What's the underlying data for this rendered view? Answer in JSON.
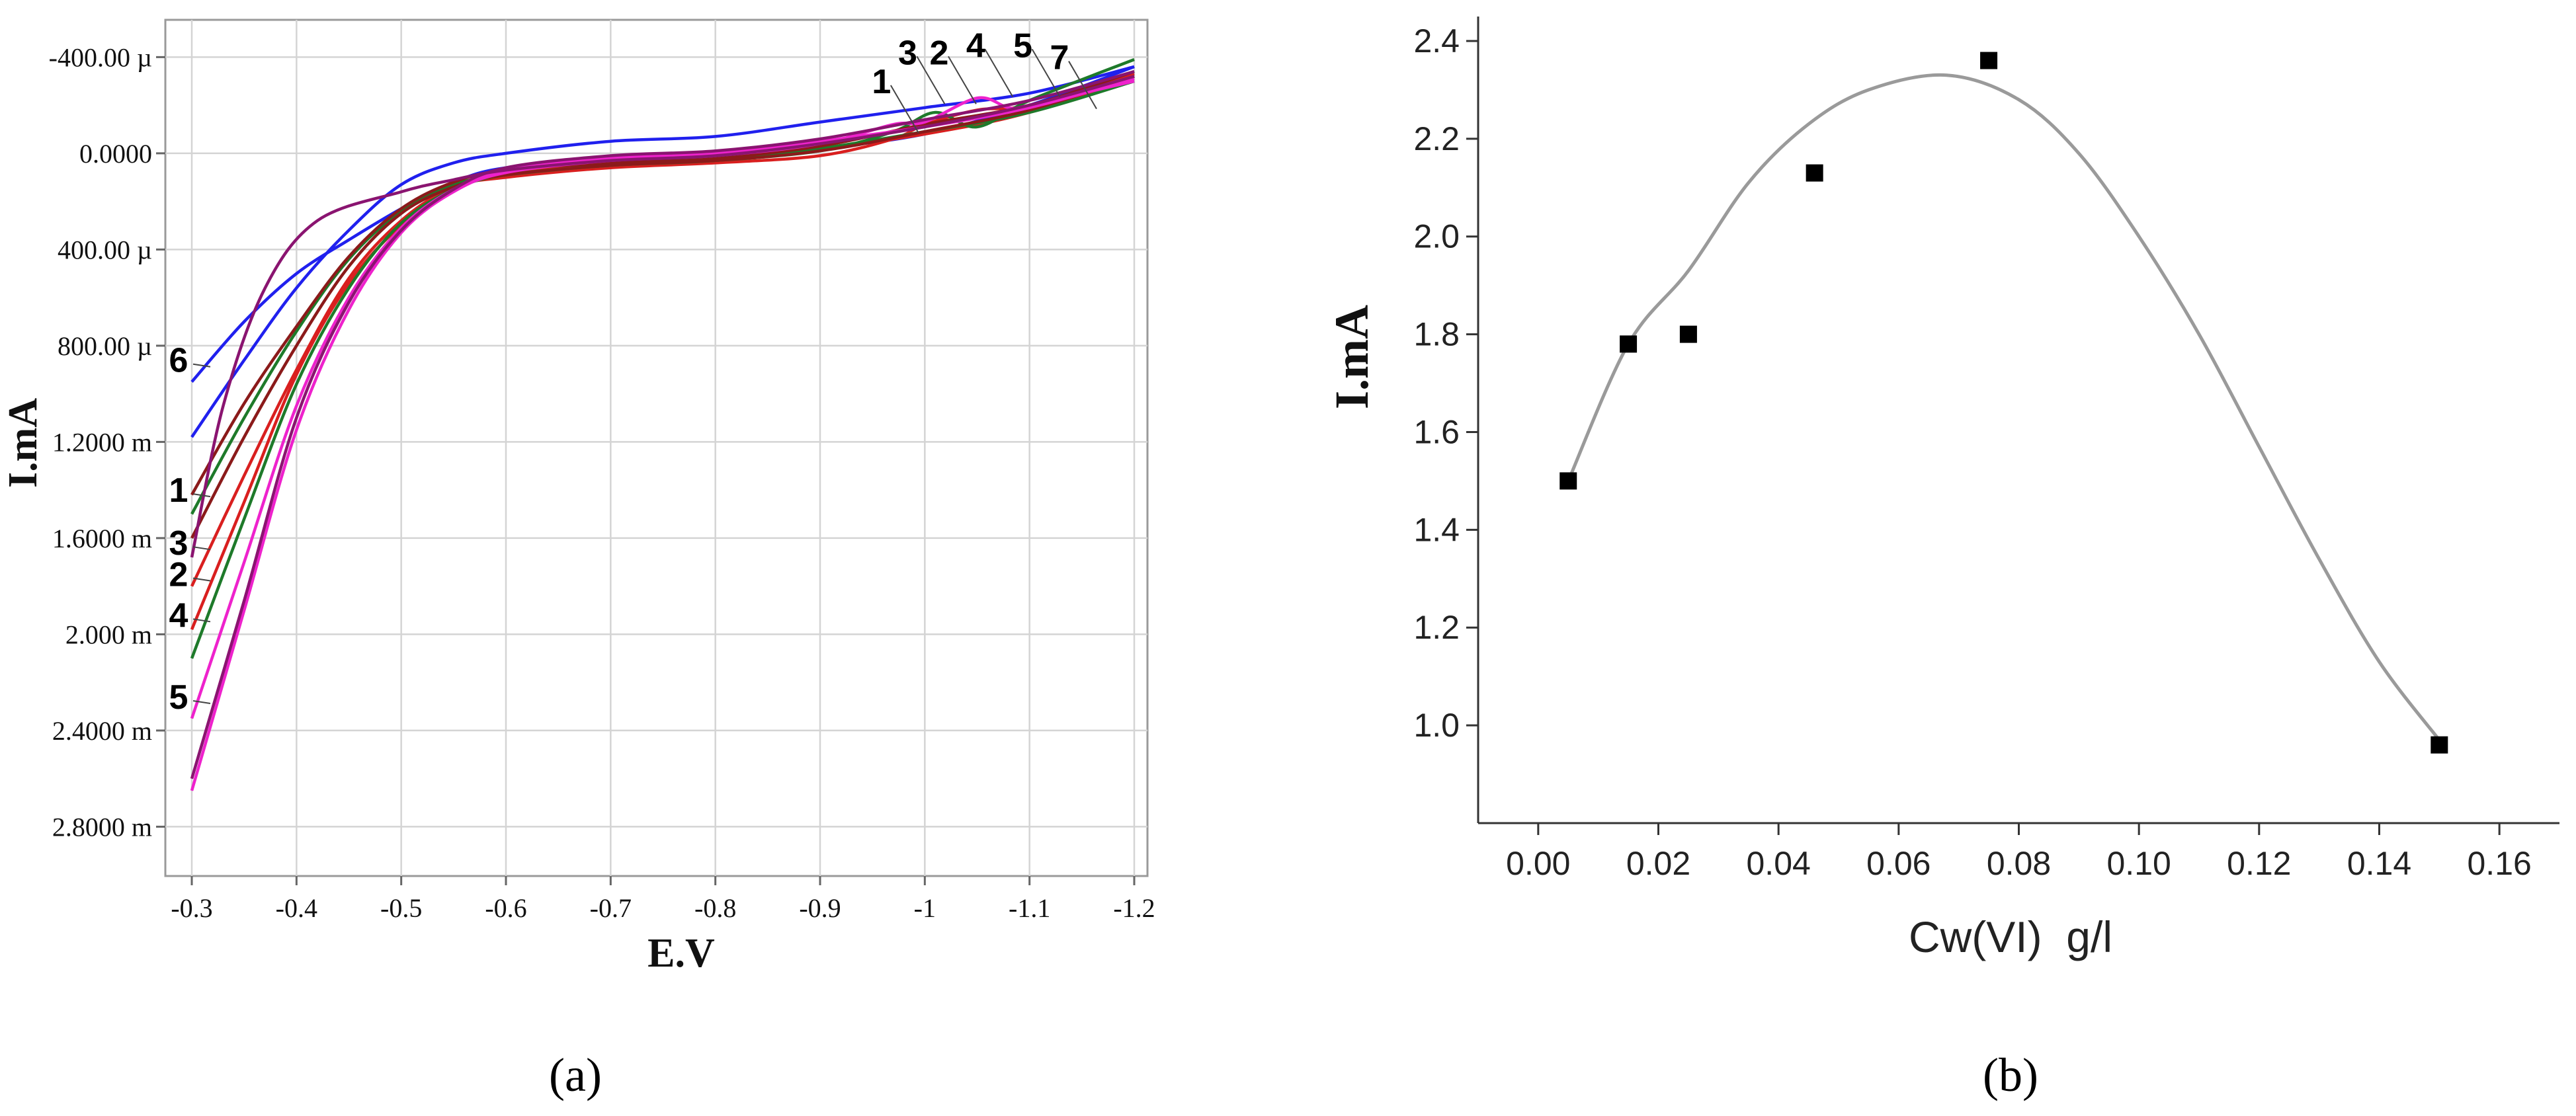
{
  "chart_data": [
    {
      "panel_label": "(a)",
      "type": "line",
      "xlabel": "E.V",
      "ylabel": "I.mA",
      "xlim": [
        -0.3,
        -1.2
      ],
      "ylim": [
        -500,
        2950
      ],
      "y_unit": "µA",
      "x_ticks": [
        {
          "v": -0.3,
          "label": "-0.3"
        },
        {
          "v": -0.4,
          "label": "-0.4"
        },
        {
          "v": -0.5,
          "label": "-0.5"
        },
        {
          "v": -0.6,
          "label": "-0.6"
        },
        {
          "v": -0.7,
          "label": "-0.7"
        },
        {
          "v": -0.8,
          "label": "-0.8"
        },
        {
          "v": -0.9,
          "label": "-0.9"
        },
        {
          "v": -1.0,
          "label": "-1"
        },
        {
          "v": -1.1,
          "label": "-1.1"
        },
        {
          "v": -1.2,
          "label": "-1.2"
        }
      ],
      "y_ticks": [
        {
          "v": -400,
          "label": "-400.00 µ"
        },
        {
          "v": 0,
          "label": "0.0000"
        },
        {
          "v": 400,
          "label": "400.00 µ"
        },
        {
          "v": 800,
          "label": "800.00 µ"
        },
        {
          "v": 1200,
          "label": "1.2000 m"
        },
        {
          "v": 1600,
          "label": "1.6000 m"
        },
        {
          "v": 2000,
          "label": "2.000 m"
        },
        {
          "v": 2400,
          "label": "2.4000 m"
        },
        {
          "v": 2800,
          "label": "2.8000 m"
        }
      ],
      "grid": true,
      "series": [
        {
          "color": "#2020ee",
          "curves": [
            {
              "x": [
                -0.3,
                -0.35,
                -0.4,
                -0.45,
                -0.5,
                -0.55,
                -0.6,
                -0.7,
                -0.8,
                -0.9,
                -1.0,
                -1.1,
                -1.2
              ],
              "y": [
                950,
                700,
                500,
                360,
                230,
                120,
                60,
                30,
                20,
                -20,
                -80,
                -200,
                -360
              ]
            },
            {
              "x": [
                -0.3,
                -0.35,
                -0.4,
                -0.45,
                -0.5,
                -0.55,
                -0.6,
                -0.7,
                -0.8,
                -0.9,
                -1.0,
                -1.1,
                -1.2
              ],
              "y": [
                1180,
                860,
                560,
                320,
                130,
                40,
                0,
                -50,
                -70,
                -130,
                -190,
                -250,
                -360
              ]
            }
          ]
        },
        {
          "color": "#d91f1f",
          "curves": [
            {
              "x": [
                -0.3,
                -0.35,
                -0.4,
                -0.45,
                -0.5,
                -0.55,
                -0.6,
                -0.7,
                -0.8,
                -0.9,
                -0.97,
                -1.0,
                -1.05,
                -1.1,
                -1.2
              ],
              "y": [
                1800,
                1340,
                900,
                520,
                280,
                140,
                100,
                60,
                40,
                10,
                -60,
                -120,
                -180,
                -200,
                -330
              ]
            },
            {
              "x": [
                -0.3,
                -0.35,
                -0.4,
                -0.45,
                -0.5,
                -0.55,
                -0.6,
                -0.7,
                -0.8,
                -0.9,
                -1.0,
                -1.1,
                -1.2
              ],
              "y": [
                1980,
                1450,
                920,
                540,
                300,
                150,
                80,
                40,
                20,
                -20,
                -80,
                -170,
                -320
              ]
            }
          ]
        },
        {
          "color": "#1e7a2a",
          "curves": [
            {
              "x": [
                -0.3,
                -0.35,
                -0.4,
                -0.45,
                -0.5,
                -0.55,
                -0.6,
                -0.7,
                -0.8,
                -0.9,
                -0.97,
                -1.01,
                -1.05,
                -1.1,
                -1.2
              ],
              "y": [
                2100,
                1520,
                960,
                560,
                290,
                150,
                90,
                50,
                30,
                -10,
                -90,
                -170,
                -110,
                -220,
                -390
              ]
            },
            {
              "x": [
                -0.3,
                -0.35,
                -0.4,
                -0.45,
                -0.5,
                -0.55,
                -0.6,
                -0.7,
                -0.8,
                -0.9,
                -1.0,
                -1.1,
                -1.2
              ],
              "y": [
                1500,
                1100,
                740,
                440,
                240,
                130,
                90,
                50,
                30,
                -20,
                -90,
                -170,
                -300
              ]
            }
          ]
        },
        {
          "color": "#8b1a1a",
          "curves": [
            {
              "x": [
                -0.3,
                -0.35,
                -0.4,
                -0.45,
                -0.5,
                -0.55,
                -0.6,
                -0.7,
                -0.8,
                -0.9,
                -1.0,
                -1.1,
                -1.2
              ],
              "y": [
                1600,
                1180,
                800,
                470,
                250,
                140,
                90,
                50,
                30,
                -10,
                -90,
                -180,
                -320
              ]
            },
            {
              "x": [
                -0.3,
                -0.35,
                -0.4,
                -0.45,
                -0.5,
                -0.55,
                -0.6,
                -0.7,
                -0.8,
                -0.9,
                -1.0,
                -1.1,
                -1.2
              ],
              "y": [
                1420,
                1040,
                720,
                430,
                230,
                120,
                70,
                40,
                20,
                -30,
                -120,
                -200,
                -340
              ]
            }
          ]
        },
        {
          "color": "#ee22cc",
          "curves": [
            {
              "x": [
                -0.3,
                -0.35,
                -0.4,
                -0.45,
                -0.5,
                -0.55,
                -0.6,
                -0.7,
                -0.8,
                -0.9,
                -0.97,
                -1.0,
                -1.05,
                -1.08,
                -1.1,
                -1.2
              ],
              "y": [
                2650,
                1900,
                1150,
                650,
                330,
                160,
                80,
                30,
                10,
                -40,
                -120,
                -130,
                -230,
                -190,
                -200,
                -300
              ]
            },
            {
              "x": [
                -0.3,
                -0.35,
                -0.4,
                -0.45,
                -0.5,
                -0.55,
                -0.6,
                -0.7,
                -0.8,
                -0.9,
                -1.0,
                -1.1,
                -1.2
              ],
              "y": [
                2350,
                1700,
                1050,
                600,
                310,
                150,
                70,
                20,
                0,
                -50,
                -110,
                -190,
                -310
              ]
            }
          ]
        },
        {
          "color": "#8a1470",
          "curves": [
            {
              "x": [
                -0.3,
                -0.35,
                -0.4,
                -0.45,
                -0.5,
                -0.55,
                -0.6,
                -0.7,
                -0.8,
                -0.9,
                -1.0,
                -1.1,
                -1.2
              ],
              "y": [
                2600,
                1860,
                1100,
                620,
                320,
                150,
                60,
                10,
                -10,
                -60,
                -140,
                -220,
                -340
              ]
            },
            {
              "x": [
                -0.3,
                -0.33,
                -0.37,
                -0.42,
                -0.5,
                -0.55,
                -0.6,
                -0.7,
                -0.8,
                -0.9,
                -1.0,
                -1.1,
                -1.2
              ],
              "y": [
                1680,
                1050,
                560,
                280,
                160,
                110,
                70,
                30,
                10,
                -40,
                -110,
                -200,
                -320
              ]
            }
          ]
        }
      ],
      "curve_labels": [
        {
          "text": "6",
          "x": -0.3,
          "y": 860
        },
        {
          "text": "1",
          "x": -0.3,
          "y": 1400
        },
        {
          "text": "3",
          "x": -0.3,
          "y": 1620
        },
        {
          "text": "2",
          "x": -0.3,
          "y": 1750
        },
        {
          "text": "4",
          "x": -0.3,
          "y": 1920
        },
        {
          "text": "5",
          "x": -0.3,
          "y": 2260
        },
        {
          "text": "1",
          "x": -0.97,
          "y": -250
        },
        {
          "text": "3",
          "x": -0.995,
          "y": -370
        },
        {
          "text": "2",
          "x": -1.025,
          "y": -370
        },
        {
          "text": "4",
          "x": -1.06,
          "y": -400
        },
        {
          "text": "5",
          "x": -1.105,
          "y": -400
        },
        {
          "text": "7",
          "x": -1.14,
          "y": -350
        }
      ]
    },
    {
      "panel_label": "(b)",
      "type": "scatter",
      "xlabel": "Cw(VI)  g/l",
      "ylabel": "I.mA",
      "xlim": [
        -0.01,
        0.17
      ],
      "ylim": [
        0.8,
        2.45
      ],
      "x_ticks": [
        {
          "v": 0.0,
          "label": "0.00"
        },
        {
          "v": 0.02,
          "label": "0.02"
        },
        {
          "v": 0.04,
          "label": "0.04"
        },
        {
          "v": 0.06,
          "label": "0.06"
        },
        {
          "v": 0.08,
          "label": "0.08"
        },
        {
          "v": 0.1,
          "label": "0.10"
        },
        {
          "v": 0.12,
          "label": "0.12"
        },
        {
          "v": 0.14,
          "label": "0.14"
        },
        {
          "v": 0.16,
          "label": "0.16"
        }
      ],
      "y_ticks": [
        {
          "v": 1.0,
          "label": "1.0"
        },
        {
          "v": 1.2,
          "label": "1.2"
        },
        {
          "v": 1.4,
          "label": "1.4"
        },
        {
          "v": 1.6,
          "label": "1.6"
        },
        {
          "v": 1.8,
          "label": "1.8"
        },
        {
          "v": 2.0,
          "label": "2.0"
        },
        {
          "v": 2.2,
          "label": "2.2"
        },
        {
          "v": 2.4,
          "label": "2.4"
        }
      ],
      "grid": false,
      "points": {
        "x": [
          0.005,
          0.015,
          0.025,
          0.046,
          0.075,
          0.15
        ],
        "y": [
          1.5,
          1.78,
          1.8,
          2.13,
          2.36,
          0.96
        ]
      },
      "fit_curve": {
        "x": [
          0.005,
          0.015,
          0.025,
          0.035,
          0.045,
          0.055,
          0.068,
          0.08,
          0.09,
          0.1,
          0.11,
          0.12,
          0.13,
          0.14,
          0.15
        ],
        "y": [
          1.5,
          1.78,
          1.93,
          2.11,
          2.23,
          2.3,
          2.33,
          2.28,
          2.17,
          2.0,
          1.8,
          1.57,
          1.34,
          1.13,
          0.97
        ]
      }
    }
  ]
}
